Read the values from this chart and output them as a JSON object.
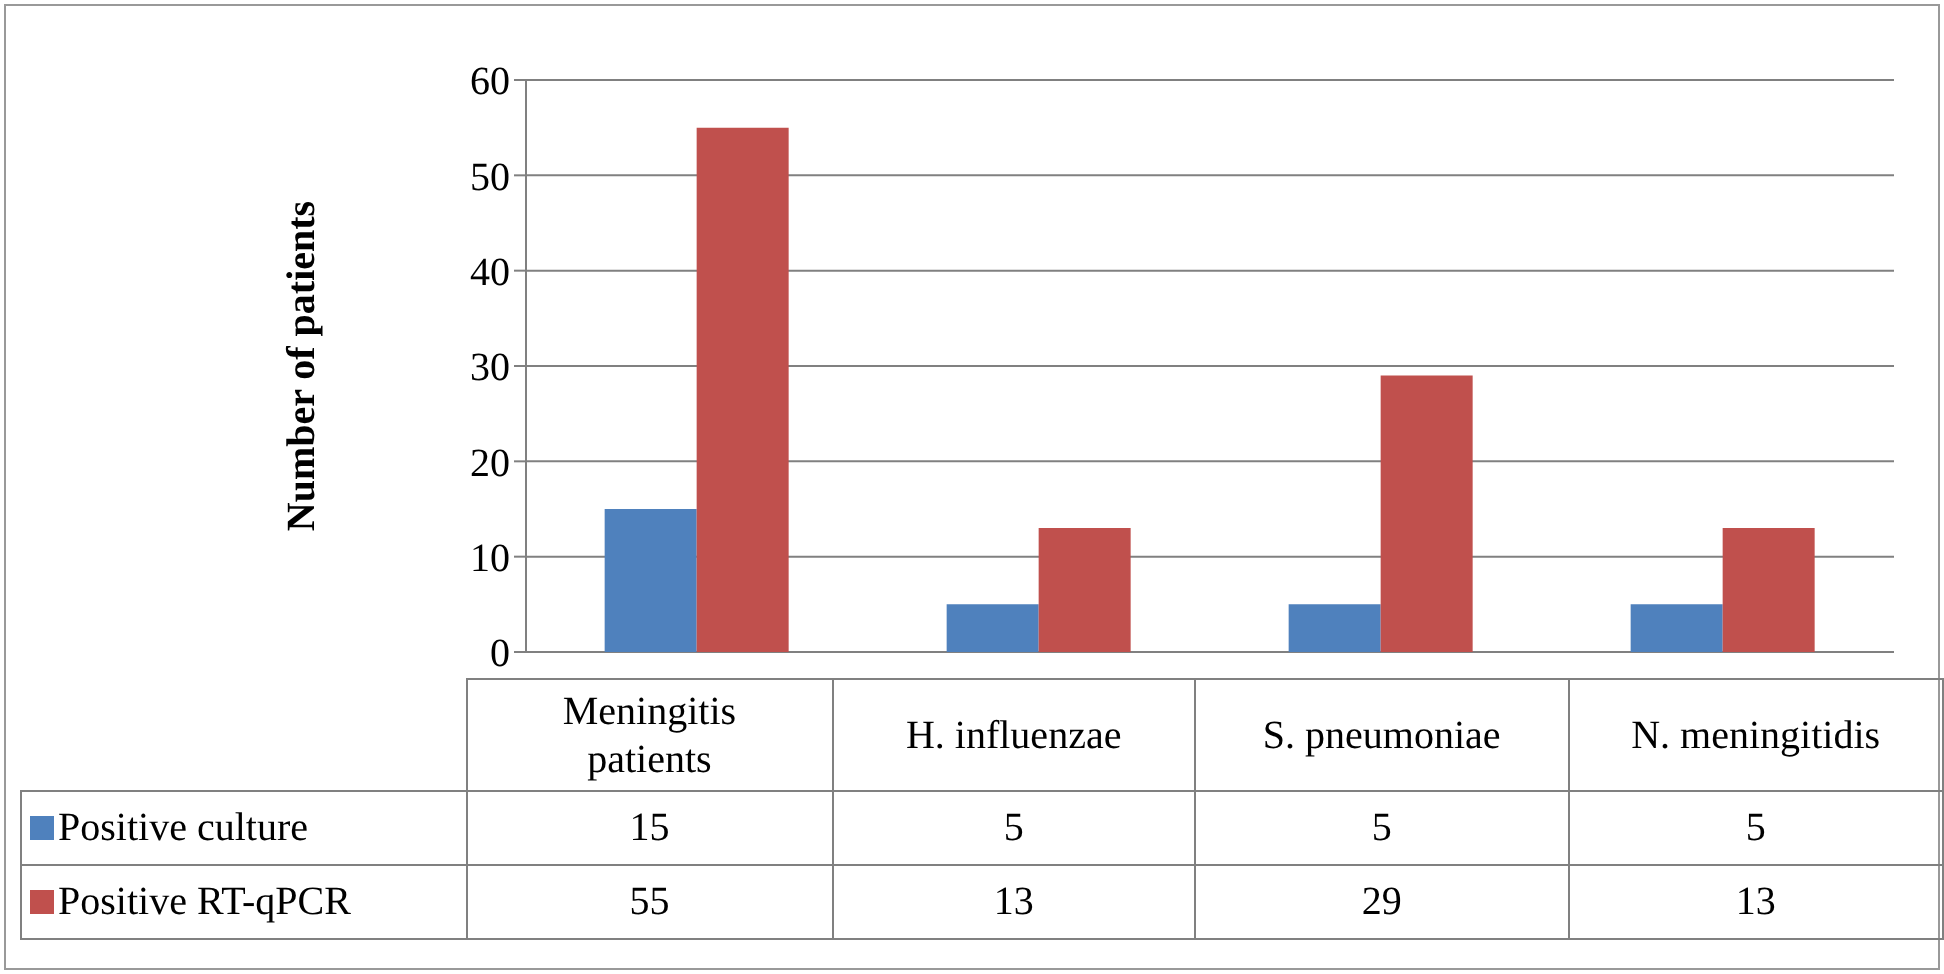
{
  "chart_data": {
    "type": "bar",
    "ylabel": "Number of patients",
    "categories": [
      "Meningitis patients",
      "H. influenzae",
      "S. pneumoniae",
      "N. meningitidis"
    ],
    "series": [
      {
        "name": "Positive culture",
        "color": "#4f81bd",
        "values": [
          15,
          5,
          5,
          5
        ]
      },
      {
        "name": "Positive RT-qPCR",
        "color": "#c0504d",
        "values": [
          55,
          13,
          29,
          13
        ]
      }
    ],
    "ylim": [
      0,
      60
    ],
    "yticks": [
      0,
      10,
      20,
      30,
      40,
      50,
      60
    ],
    "grid": "y",
    "legend": "bottom",
    "data_labels": true
  }
}
